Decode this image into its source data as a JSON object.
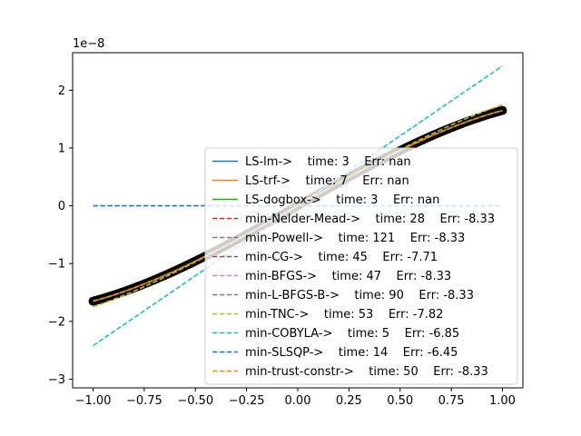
{
  "chart_data": {
    "type": "line",
    "title": "",
    "xlabel": "",
    "ylabel": "",
    "offset_text": "1e−8",
    "xlim": [
      -1.1,
      1.1
    ],
    "ylim": [
      -3.15,
      2.65
    ],
    "y_scale_exponent": -8,
    "xticks": [
      -1.0,
      -0.75,
      -0.5,
      -0.25,
      0.0,
      0.25,
      0.5,
      0.75,
      1.0
    ],
    "xtick_labels": [
      "−1.00",
      "−0.75",
      "−0.50",
      "−0.25",
      "0.00",
      "0.25",
      "0.50",
      "0.75",
      "1.00"
    ],
    "yticks": [
      -3,
      -2,
      -1,
      0,
      1,
      2
    ],
    "ytick_labels": [
      "−3",
      "−2",
      "−1",
      "0",
      "1",
      "2"
    ],
    "grid": false,
    "legend_position": "lower-right",
    "data_points": {
      "name": "data",
      "color": "#000000",
      "x_range": [
        -1.0,
        1.0
      ],
      "note_model": "cubic",
      "coefficients": [
        0.0,
        2.0,
        0.0,
        -0.35
      ]
    },
    "series": [
      {
        "name": "LS-lm->    time: 3    Err: nan",
        "color": "#1f77b4",
        "style": "solid",
        "x": [
          -1.0,
          1.0
        ],
        "y_model": "fit"
      },
      {
        "name": "LS-trf->    time: 7    Err: nan",
        "color": "#ff7f0e",
        "style": "solid",
        "y_model": "fit"
      },
      {
        "name": "LS-dogbox->    time: 3    Err: nan",
        "color": "#2ca02c",
        "style": "solid",
        "y_model": "fit"
      },
      {
        "name": "min-Nelder-Mead->    time: 28    Err: -8.33",
        "color": "#d62728",
        "style": "dashed",
        "y_model": "fit"
      },
      {
        "name": "min-Powell->    time: 121    Err: -8.33",
        "color": "#9467bd",
        "style": "dashed",
        "y_model": "fit"
      },
      {
        "name": "min-CG->    time: 45    Err: -7.71",
        "color": "#8c564b",
        "style": "dashed",
        "y_model": "fit"
      },
      {
        "name": "min-BFGS->    time: 47    Err: -8.33",
        "color": "#e377c2",
        "style": "dashed",
        "y_model": "fit"
      },
      {
        "name": "min-L-BFGS-B->    time: 90    Err: -8.33",
        "color": "#7f7f7f",
        "style": "dashed",
        "y_model": "fit"
      },
      {
        "name": "min-TNC->    time: 53    Err: -7.82",
        "color": "#bcbd22",
        "style": "dashed",
        "y_model": "tnc"
      },
      {
        "name": "min-COBYLA->    time: 5    Err: -6.85",
        "color": "#17becf",
        "style": "dashed",
        "y_model": "linear",
        "y_endpoints": [
          -2.42,
          2.42
        ]
      },
      {
        "name": "min-SLSQP->    time: 14    Err: -6.45",
        "color": "#1f77b4",
        "style": "dashed",
        "y_model": "constant",
        "y_value": 0.0
      },
      {
        "name": "min-trust-constr->    time: 50    Err: -8.33",
        "color": "#ff7f0e",
        "style": "dashed",
        "y_model": "fit"
      }
    ]
  }
}
